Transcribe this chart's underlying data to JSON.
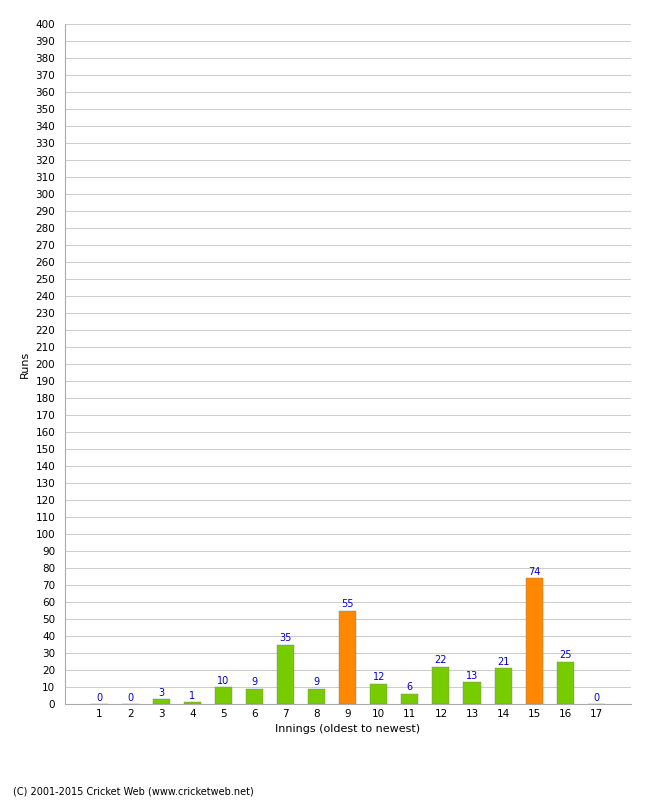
{
  "xlabel": "Innings (oldest to newest)",
  "ylabel": "Runs",
  "categories": [
    1,
    2,
    3,
    4,
    5,
    6,
    7,
    8,
    9,
    10,
    11,
    12,
    13,
    14,
    15,
    16,
    17
  ],
  "values": [
    0,
    0,
    3,
    1,
    10,
    9,
    35,
    9,
    55,
    12,
    6,
    22,
    13,
    21,
    74,
    25,
    0
  ],
  "bar_colors": [
    "#77cc00",
    "#77cc00",
    "#77cc00",
    "#77cc00",
    "#77cc00",
    "#77cc00",
    "#77cc00",
    "#77cc00",
    "#ff8800",
    "#77cc00",
    "#77cc00",
    "#77cc00",
    "#77cc00",
    "#77cc00",
    "#ff8800",
    "#77cc00",
    "#77cc00"
  ],
  "ylim": [
    0,
    400
  ],
  "yticks": [
    0,
    10,
    20,
    30,
    40,
    50,
    60,
    70,
    80,
    90,
    100,
    110,
    120,
    130,
    140,
    150,
    160,
    170,
    180,
    190,
    200,
    210,
    220,
    230,
    240,
    250,
    260,
    270,
    280,
    290,
    300,
    310,
    320,
    330,
    340,
    350,
    360,
    370,
    380,
    390,
    400
  ],
  "label_color": "#0000cc",
  "label_fontsize": 7,
  "axis_fontsize": 7.5,
  "ylabel_fontsize": 8,
  "xlabel_fontsize": 8,
  "footer": "(C) 2001-2015 Cricket Web (www.cricketweb.net)",
  "background_color": "#ffffff",
  "grid_color": "#cccccc",
  "bar_width": 0.55
}
